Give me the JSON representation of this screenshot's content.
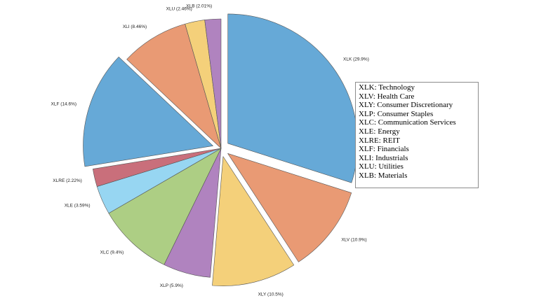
{
  "chart_data": {
    "type": "pie",
    "slices": [
      {
        "label": "XLK (29.9%)",
        "value": 29.9,
        "color": "#66a9d7",
        "exploded": true
      },
      {
        "label": "XLV (10.9%)",
        "value": 10.9,
        "color": "#e99a74",
        "exploded": true
      },
      {
        "label": "XLY (10.5%)",
        "value": 10.5,
        "color": "#f4d07a",
        "exploded": true
      },
      {
        "label": "XLP (5.9%)",
        "value": 5.9,
        "color": "#b083bf",
        "exploded": false
      },
      {
        "label": "XLC (9.4%)",
        "value": 9.4,
        "color": "#adce84",
        "exploded": false
      },
      {
        "label": "XLE (3.59%)",
        "value": 3.59,
        "color": "#97d6f2",
        "exploded": false
      },
      {
        "label": "XLRE (2.22%)",
        "value": 2.22,
        "color": "#c96f7b",
        "exploded": false
      },
      {
        "label": "XLF (14.6%)",
        "value": 14.6,
        "color": "#66a9d7",
        "exploded": true
      },
      {
        "label": "XLI (8.46%)",
        "value": 8.46,
        "color": "#e99a74",
        "exploded": false
      },
      {
        "label": "XLU (2.46%)",
        "value": 2.46,
        "color": "#f4d07a",
        "exploded": false
      },
      {
        "label": "XLB (2.01%)",
        "value": 2.01,
        "color": "#b083bf",
        "exploded": false
      }
    ],
    "start_angle_deg": 90,
    "direction": "clockwise",
    "legend": {
      "placement": "right",
      "entries": [
        "XLK: Technology",
        "XLV: Health Care",
        "XLY: Consumer Discretionary",
        "XLP: Consumer Staples",
        "XLC: Communication Services",
        "XLE: Energy",
        "XLRE: REIT",
        "XLF: Financials",
        "XLI: Industrials",
        "XLU: Utilities",
        "XLB: Materials"
      ]
    }
  }
}
